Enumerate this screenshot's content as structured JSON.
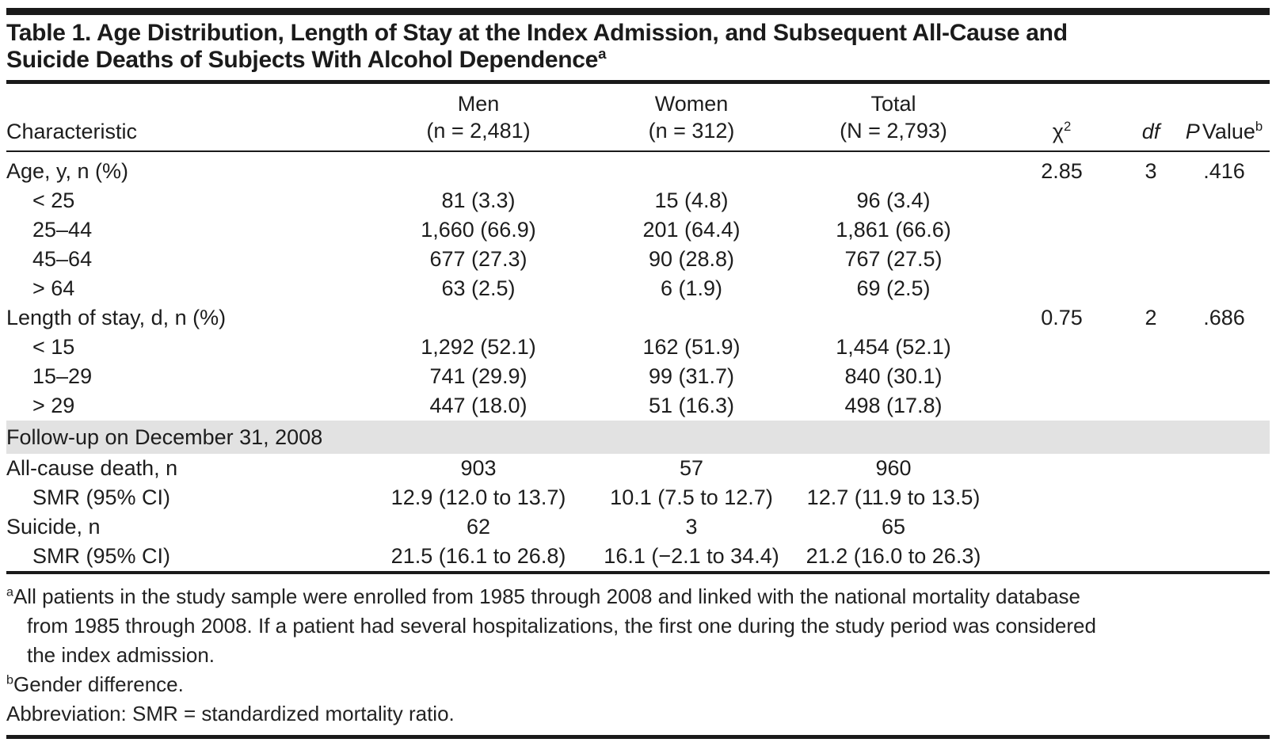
{
  "title": {
    "line1": "Table 1. Age Distribution, Length of Stay at the Index Admission, and Subsequent All-Cause and",
    "line2": "Suicide Deaths of Subjects With Alcohol Dependence",
    "sup": "a"
  },
  "table": {
    "header": {
      "characteristic": "Characteristic",
      "men": {
        "line1": "Men",
        "line2": "(n = 2,481)"
      },
      "women": {
        "line1": "Women",
        "line2": "(n = 312)"
      },
      "total": {
        "line1": "Total",
        "line2": "(N = 2,793)"
      },
      "chi": "χ",
      "chi_sup": "2",
      "df": "df",
      "p_italic": "P",
      "p_text": "Value",
      "p_sup": "b"
    },
    "rows": [
      {
        "label": "Age, y, n (%)",
        "men": "",
        "women": "",
        "total": "",
        "chi2": "2.85",
        "df": "3",
        "p": ".416"
      },
      {
        "label": "< 25",
        "men": "81 (3.3)",
        "women": "15 (4.8)",
        "total": "96 (3.4)",
        "chi2": "",
        "df": "",
        "p": ""
      },
      {
        "label": "25–44",
        "men": "1,660 (66.9)",
        "women": "201 (64.4)",
        "total": "1,861 (66.6)",
        "chi2": "",
        "df": "",
        "p": ""
      },
      {
        "label": "45–64",
        "men": "677 (27.3)",
        "women": "90 (28.8)",
        "total": "767 (27.5)",
        "chi2": "",
        "df": "",
        "p": ""
      },
      {
        "label": "> 64",
        "men": "63 (2.5)",
        "women": "6 (1.9)",
        "total": "69 (2.5)",
        "chi2": "",
        "df": "",
        "p": ""
      },
      {
        "label": "Length of stay, d, n (%)",
        "men": "",
        "women": "",
        "total": "",
        "chi2": "0.75",
        "df": "2",
        "p": ".686"
      },
      {
        "label": "< 15",
        "men": "1,292 (52.1)",
        "women": "162 (51.9)",
        "total": "1,454 (52.1)",
        "chi2": "",
        "df": "",
        "p": ""
      },
      {
        "label": "15–29",
        "men": "741 (29.9)",
        "women": "99 (31.7)",
        "total": "840 (30.1)",
        "chi2": "",
        "df": "",
        "p": ""
      },
      {
        "label": "> 29",
        "men": "447 (18.0)",
        "women": "51 (16.3)",
        "total": "498 (17.8)",
        "chi2": "",
        "df": "",
        "p": ""
      },
      {
        "label": "Follow-up on December 31, 2008"
      },
      {
        "label": "All-cause death, n",
        "men": "903",
        "women": "57",
        "total": "960",
        "chi2": "",
        "df": "",
        "p": ""
      },
      {
        "label": "SMR (95% CI)",
        "men": "12.9 (12.0 to 13.7)",
        "women": "10.1 (7.5 to 12.7)",
        "total": "12.7 (11.9 to 13.5)",
        "chi2": "",
        "df": "",
        "p": ""
      },
      {
        "label": "Suicide, n",
        "men": "62",
        "women": "3",
        "total": "65",
        "chi2": "",
        "df": "",
        "p": ""
      },
      {
        "label": "SMR (95% CI)",
        "men": "21.5 (16.1 to 26.8)",
        "women": "16.1 (−2.1 to 34.4)",
        "total": "21.2 (16.0 to 26.3)",
        "chi2": "",
        "df": "",
        "p": ""
      }
    ]
  },
  "footnotes": {
    "a": {
      "marker": "a",
      "lines": [
        "All patients in the study sample were enrolled from 1985 through 2008 and linked with the national mortality database",
        "from 1985 through 2008. If a patient had several hospitalizations, the first one during the study period was considered",
        "the index admission."
      ]
    },
    "b": {
      "marker": "b",
      "text": "Gender difference."
    },
    "abbreviation": "Abbreviation: SMR = standardized mortality ratio."
  },
  "colors": {
    "rule": "#1a1a1a",
    "section_band": "#e2e2e2",
    "text": "#1d1d1d"
  }
}
